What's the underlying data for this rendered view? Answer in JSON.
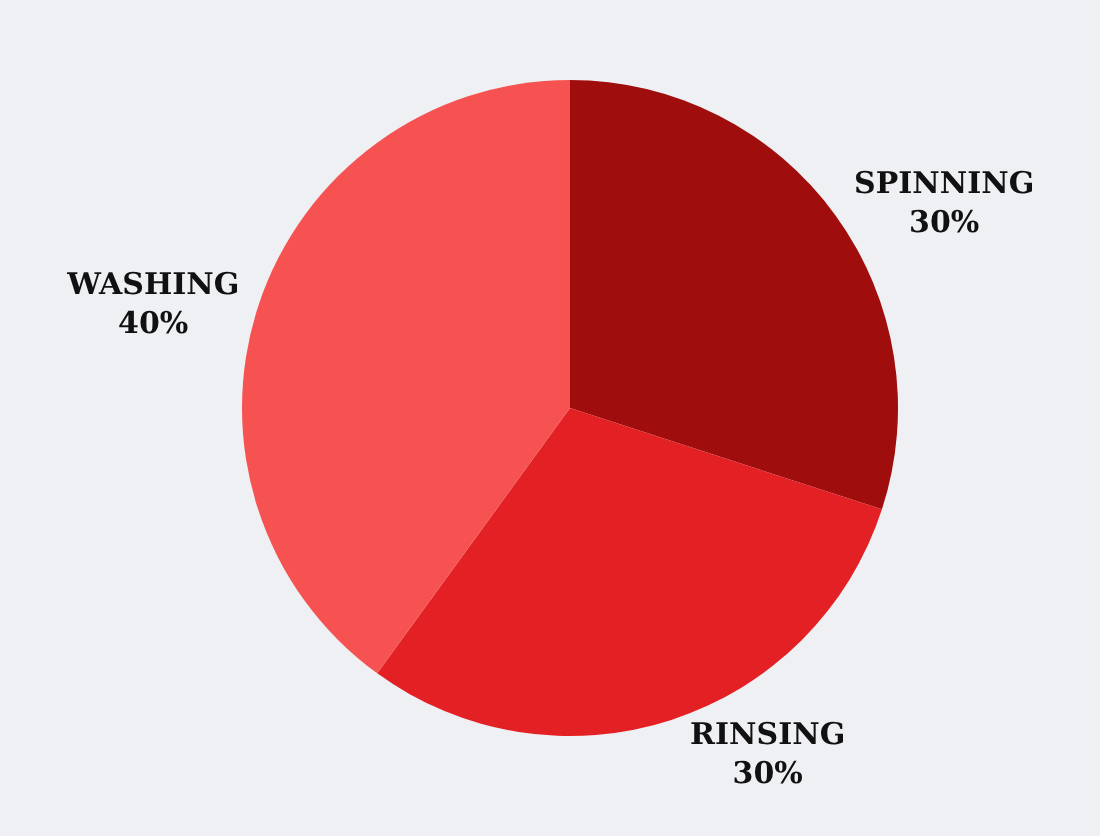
{
  "chart_data": {
    "type": "pie",
    "categories": [
      "SPINNING",
      "RINSING",
      "WASHING"
    ],
    "values": [
      30,
      30,
      40
    ],
    "value_labels": [
      "30%",
      "30%",
      "40%"
    ],
    "colors": [
      "#a00d0d",
      "#e32024",
      "#f75252"
    ]
  }
}
